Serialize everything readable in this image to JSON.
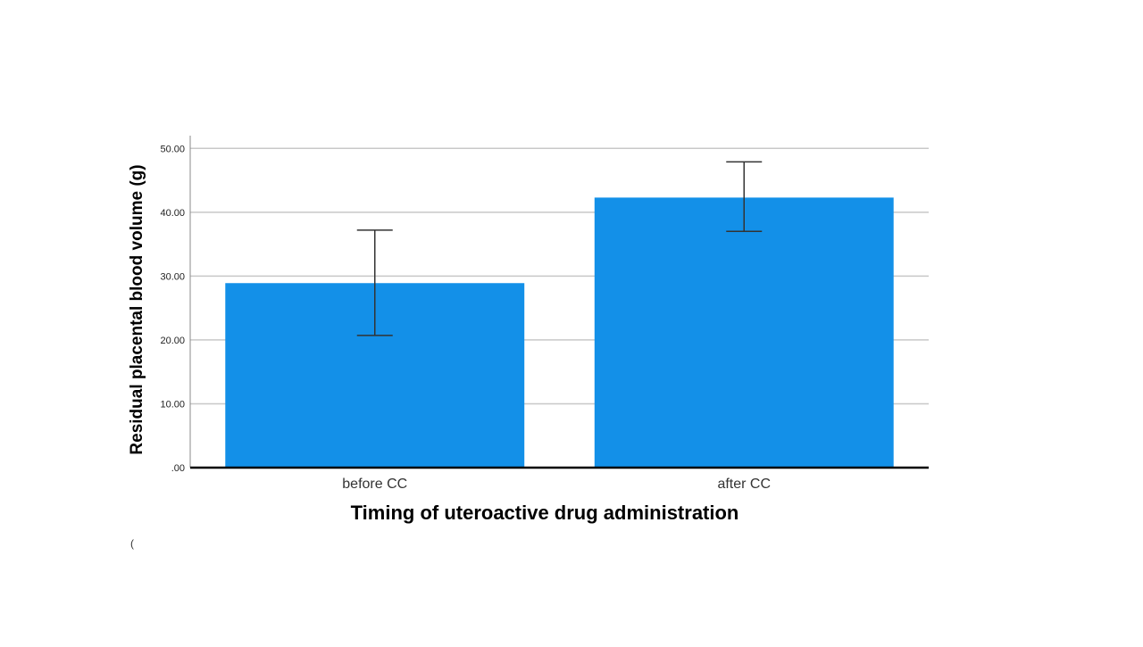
{
  "chart_data": {
    "type": "bar",
    "title": "",
    "xlabel": "Timing of uteroactive drug administration",
    "ylabel": "Residual placental blood volume (g)",
    "categories": [
      "before CC",
      "after CC"
    ],
    "values": [
      28.9,
      42.3
    ],
    "error_bars": {
      "lower": [
        20.7,
        37.0
      ],
      "upper": [
        37.2,
        47.9
      ]
    },
    "ylim": [
      0,
      52
    ],
    "yticks": [
      0,
      10,
      20,
      30,
      40,
      50
    ],
    "ytick_labels": [
      ".00",
      "10.00",
      "20.00",
      "30.00",
      "40.00",
      "50.00"
    ],
    "grid": true,
    "bar_color": "#1390e8",
    "grid_color": "#c8c8c8",
    "error_bar_color": "#333333"
  },
  "footnote": "("
}
